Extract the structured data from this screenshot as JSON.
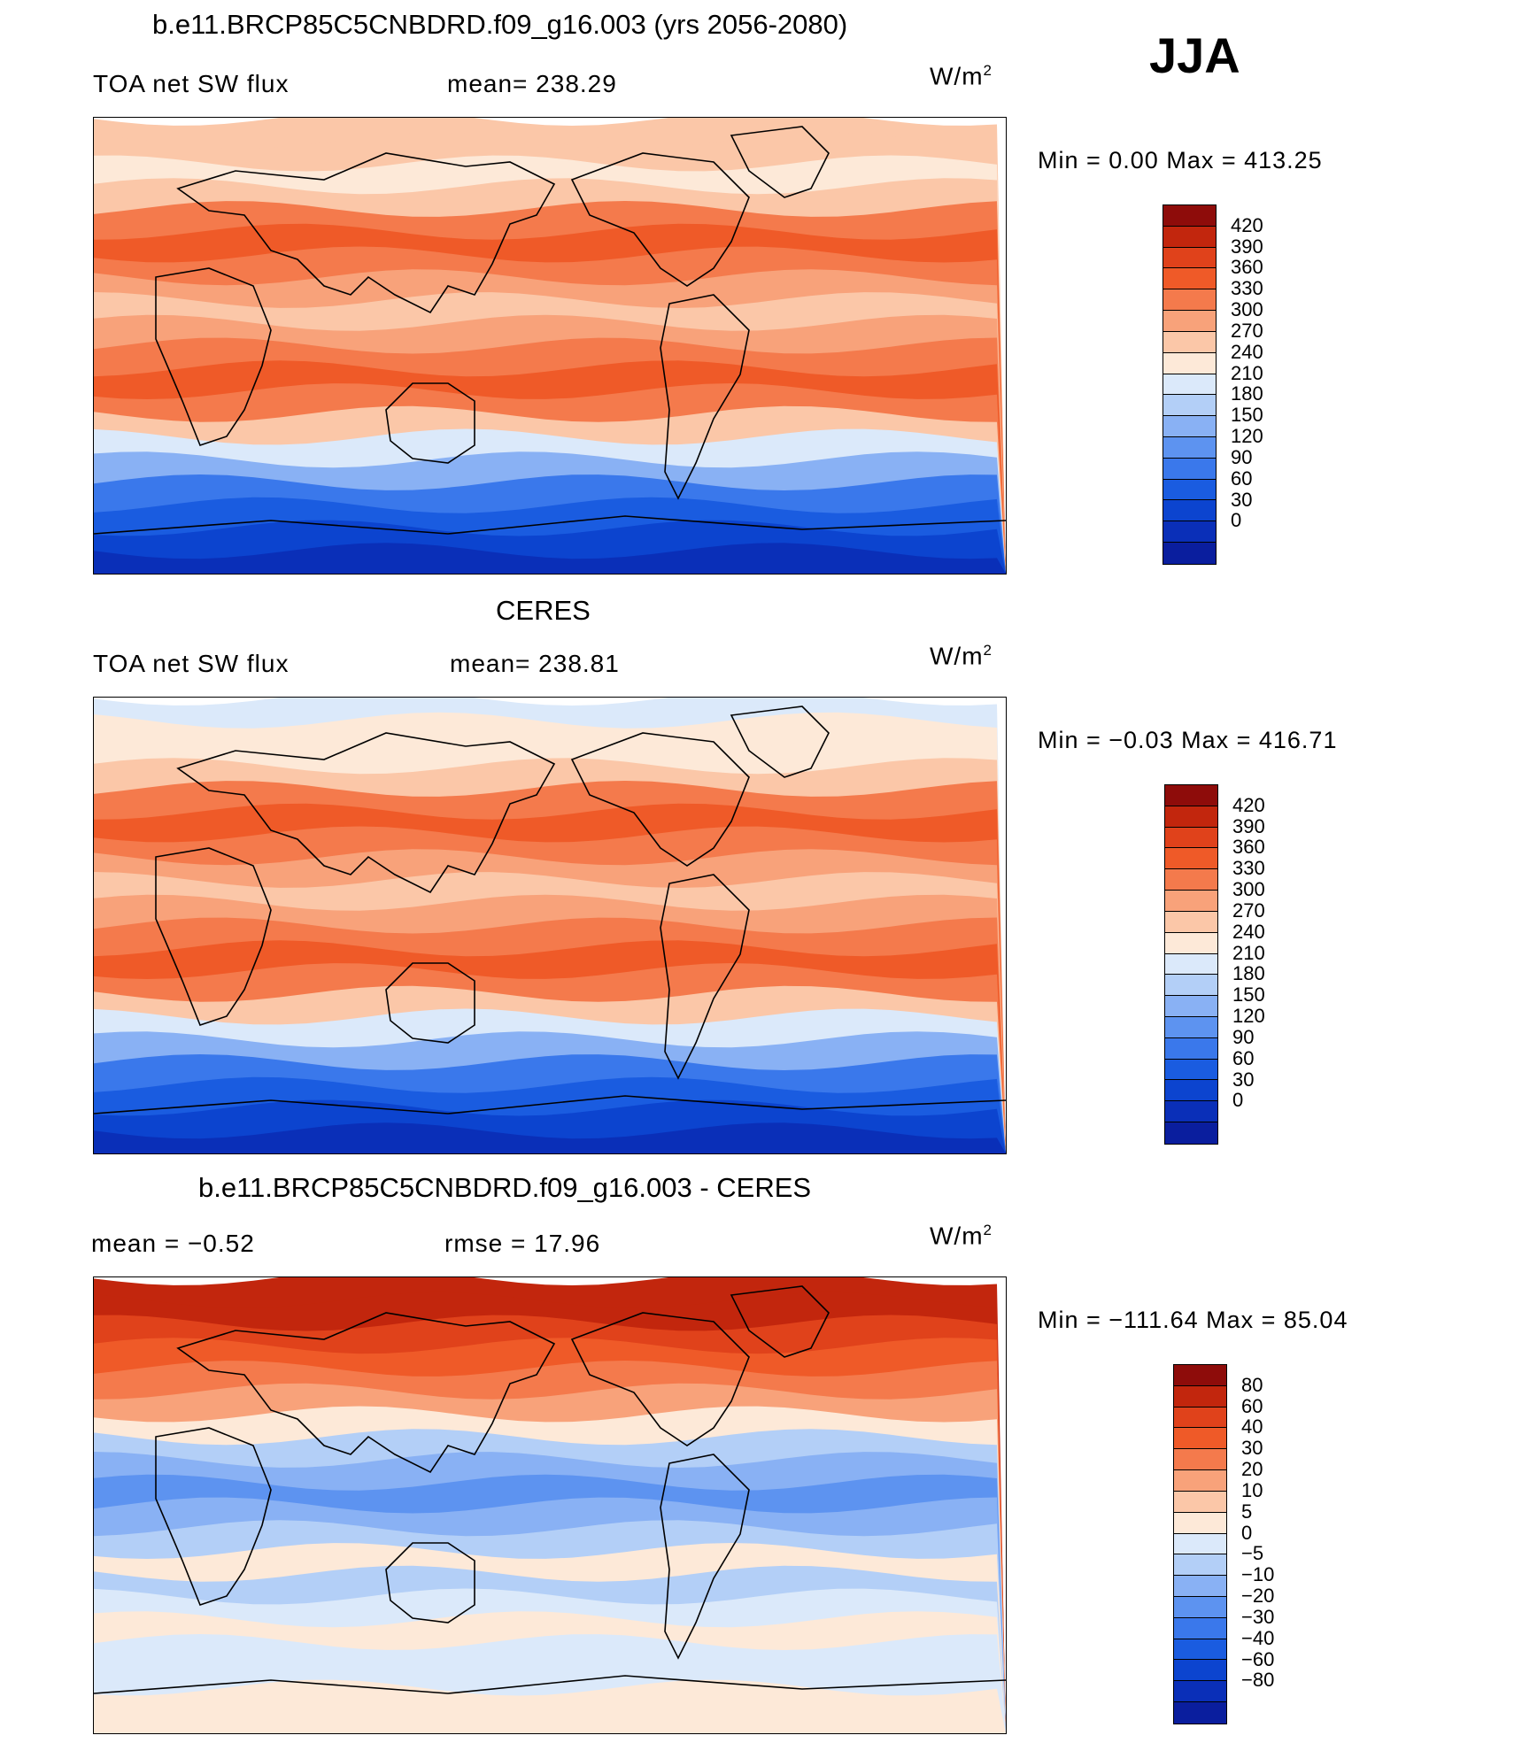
{
  "season": "JJA",
  "panels": [
    {
      "title": "b.e11.BRCP85C5CNBDRD.f09_g16.003 (yrs 2056-2080)",
      "left_label": "TOA net SW flux",
      "mid_label": "mean= 238.29",
      "unit": "W/m",
      "unit_exp": "2",
      "minmax": "Min =    0.00 Max = 413.25",
      "colors": [
        "#0a1e9e",
        "#0a2fb8",
        "#0c44cf",
        "#1a5ce0",
        "#3a78eb",
        "#5d93f0",
        "#89b1f4",
        "#b3cff7",
        "#dbe9fa",
        "#fde9d8",
        "#fbc7a8",
        "#f8a27a",
        "#f47a4c",
        "#ef5a28",
        "#e0421b",
        "#c2260d",
        "#8e0c0a"
      ],
      "ticks": [
        "420",
        "390",
        "360",
        "330",
        "300",
        "270",
        "240",
        "210",
        "180",
        "150",
        "120",
        "90",
        "60",
        "30",
        "0"
      ],
      "band_levels": [
        1,
        2,
        3,
        4,
        6,
        8,
        10,
        12,
        13,
        12,
        11,
        10,
        11,
        12,
        13,
        12,
        10,
        9,
        10,
        10
      ]
    },
    {
      "title": "CERES",
      "left_label": "TOA net SW flux",
      "mid_label": "mean= 238.81",
      "unit": "W/m",
      "unit_exp": "2",
      "minmax": "Min =  −0.03 Max = 416.71",
      "colors": [
        "#0a1e9e",
        "#0a2fb8",
        "#0c44cf",
        "#1a5ce0",
        "#3a78eb",
        "#5d93f0",
        "#89b1f4",
        "#b3cff7",
        "#dbe9fa",
        "#fde9d8",
        "#fbc7a8",
        "#f8a27a",
        "#f47a4c",
        "#ef5a28",
        "#e0421b",
        "#c2260d",
        "#8e0c0a"
      ],
      "ticks": [
        "420",
        "390",
        "360",
        "330",
        "300",
        "270",
        "240",
        "210",
        "180",
        "150",
        "120",
        "90",
        "60",
        "30",
        "0"
      ],
      "band_levels": [
        1,
        2,
        3,
        4,
        6,
        8,
        10,
        12,
        13,
        12,
        11,
        10,
        11,
        12,
        13,
        12,
        10,
        9,
        9,
        8
      ]
    },
    {
      "title": "b.e11.BRCP85C5CNBDRD.f09_g16.003 - CERES",
      "left_label": "mean =   −0.52",
      "mid_label": "rmse =   17.96",
      "unit": "W/m",
      "unit_exp": "2",
      "minmax": "Min = −111.64 Max =   85.04",
      "colors": [
        "#0a1e9e",
        "#0a2fb8",
        "#0c44cf",
        "#1a5ce0",
        "#3a78eb",
        "#5d93f0",
        "#89b1f4",
        "#b3cff7",
        "#dbe9fa",
        "#fde9d8",
        "#fbc7a8",
        "#f8a27a",
        "#f47a4c",
        "#ef5a28",
        "#e0421b",
        "#c2260d",
        "#8e0c0a"
      ],
      "ticks": [
        "80",
        "60",
        "40",
        "30",
        "20",
        "10",
        "5",
        "0",
        "−5",
        "−10",
        "−20",
        "−30",
        "−40",
        "−60",
        "−80"
      ],
      "band_levels": [
        9,
        9,
        8,
        8,
        9,
        8,
        7,
        9,
        7,
        6,
        5,
        6,
        7,
        9,
        11,
        12,
        13,
        14,
        15,
        15
      ]
    }
  ]
}
